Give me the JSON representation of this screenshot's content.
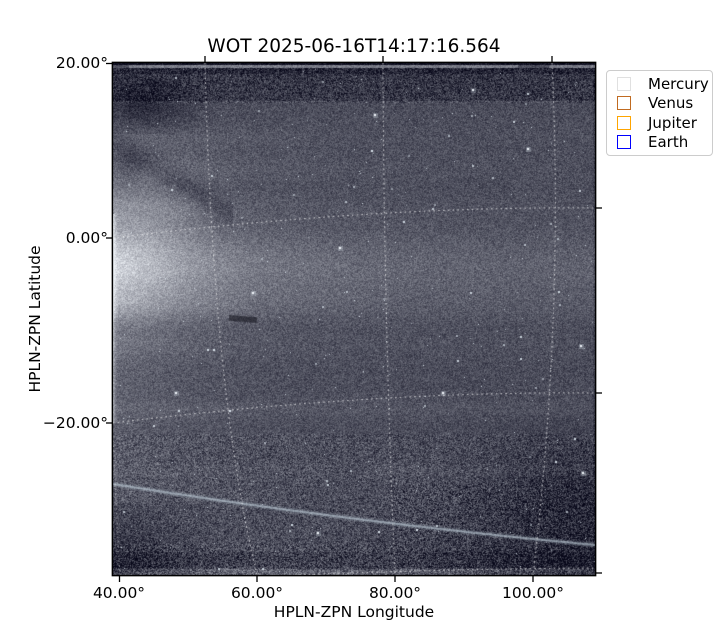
{
  "figure": {
    "title": "WOT 2025-06-16T14:17:16.564",
    "xlabel": "HPLN-ZPN Longitude",
    "ylabel": "HPLN-ZPN Latitude",
    "x_tick_labels": [
      "40.00°",
      "60.00°",
      "80.00°",
      "100.00°"
    ],
    "y_tick_labels": [
      "20.00°",
      "0.00°",
      "−20.00°"
    ]
  },
  "legend": {
    "items": [
      {
        "label": "Mercury",
        "color": "#e0e0e0"
      },
      {
        "label": "Venus",
        "color": "#c06b21"
      },
      {
        "label": "Jupiter",
        "color": "#ffa500"
      },
      {
        "label": "Earth",
        "color": "#0000ff"
      }
    ]
  },
  "chart_data": {
    "type": "heatmap",
    "title": "WOT 2025-06-16T14:17:16.564",
    "xlabel": "HPLN-ZPN Longitude",
    "ylabel": "HPLN-ZPN Latitude",
    "x_ticks_deg": [
      40,
      60,
      80,
      100
    ],
    "y_ticks_deg": [
      20,
      0,
      -20
    ],
    "xlim_deg": [
      39.1,
      109.0
    ],
    "ylim_deg": [
      -36.4,
      20.0
    ],
    "grid": "white dotted curved coordinate grid at 20° spacing (longitudes 60°, 80°, 100°; latitudes 0°, −20°)",
    "legend_position": "upper right, outside axes",
    "legend_entries": [
      "Mercury",
      "Venus",
      "Jupiter",
      "Earth"
    ],
    "image_description": "noisy dark blue-gray heliospheric-imager starfield; bright zodiacal-light band near 0° latitude brightest at the left edge; dark speckled band along the top; darker high-contrast noise in the bottom corners; thin smooth bright streak arcing across the lower third"
  }
}
